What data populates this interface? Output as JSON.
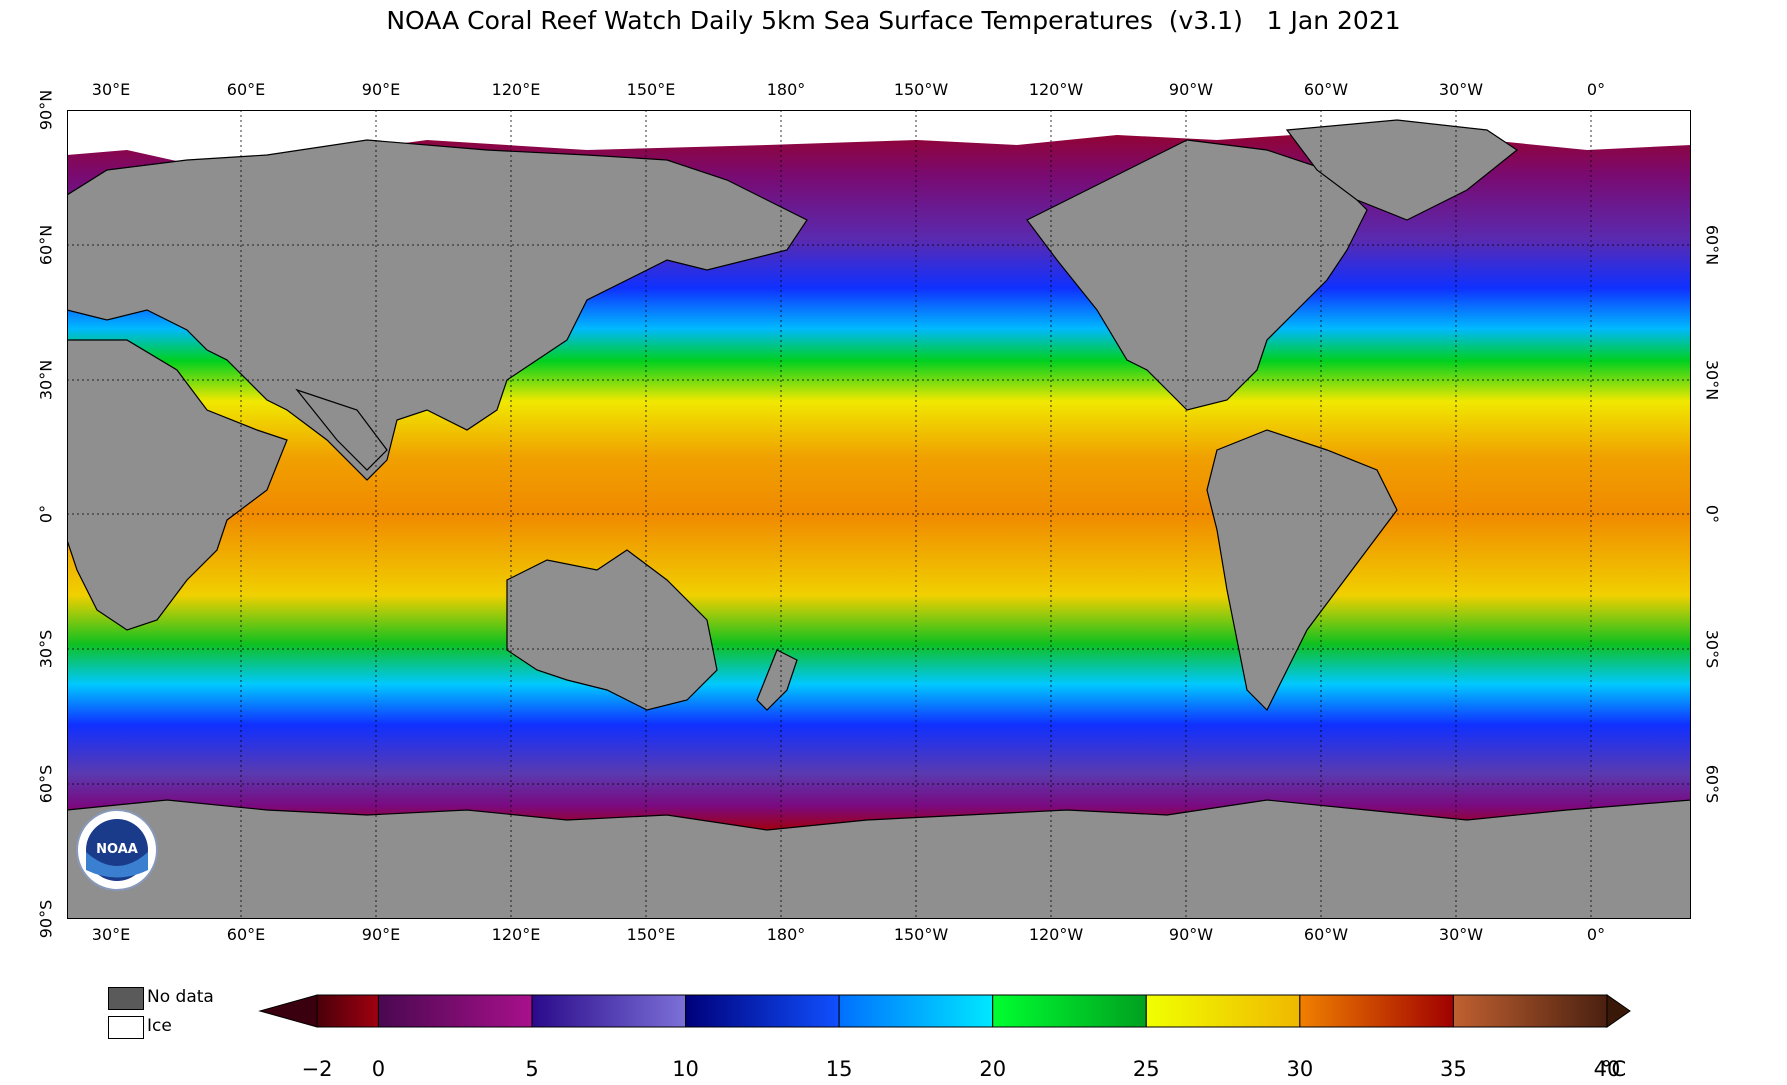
{
  "title": "NOAA Coral Reef Watch Daily 5km Sea Surface Temperatures  (v3.1)   1 Jan 2021",
  "longitude_labels": [
    "30°E",
    "60°E",
    "90°E",
    "120°E",
    "150°E",
    "180°",
    "150°W",
    "120°W",
    "90°W",
    "60°W",
    "30°W",
    "0°"
  ],
  "latitude_labels": [
    "90°N",
    "60°N",
    "30°N",
    "0°",
    "30°S",
    "60°S",
    "90°S"
  ],
  "legend": {
    "no_data": "No data",
    "ice": "Ice"
  },
  "colorbar": {
    "ticks": [
      "−2",
      "0",
      "5",
      "10",
      "15",
      "20",
      "25",
      "30",
      "35",
      "40"
    ],
    "unit": "°C",
    "range": [
      -2,
      40
    ],
    "bands": [
      {
        "from": -2,
        "to": 0,
        "colors": [
          "#4a000a",
          "#a00010"
        ]
      },
      {
        "from": 0,
        "to": 5,
        "colors": [
          "#4a0850",
          "#a8108c"
        ]
      },
      {
        "from": 5,
        "to": 10,
        "colors": [
          "#2a0a8a",
          "#7c70d8"
        ]
      },
      {
        "from": 10,
        "to": 15,
        "colors": [
          "#00007a",
          "#1050ff"
        ]
      },
      {
        "from": 15,
        "to": 20,
        "colors": [
          "#0070ff",
          "#00e8ff"
        ]
      },
      {
        "from": 20,
        "to": 25,
        "colors": [
          "#00ff30",
          "#00a020"
        ]
      },
      {
        "from": 25,
        "to": 30,
        "colors": [
          "#f0ff00",
          "#f0b800"
        ]
      },
      {
        "from": 30,
        "to": 35,
        "colors": [
          "#f08000",
          "#a00000"
        ]
      },
      {
        "from": 35,
        "to": 40,
        "colors": [
          "#c06030",
          "#4a2010"
        ]
      }
    ],
    "under_color": "#3a0010",
    "over_color": "#3a1808"
  },
  "colors": {
    "land": "#8f8f8f",
    "no_data": "#5a5a5a",
    "ice": "#ffffff"
  },
  "logo_text": "NOAA"
}
